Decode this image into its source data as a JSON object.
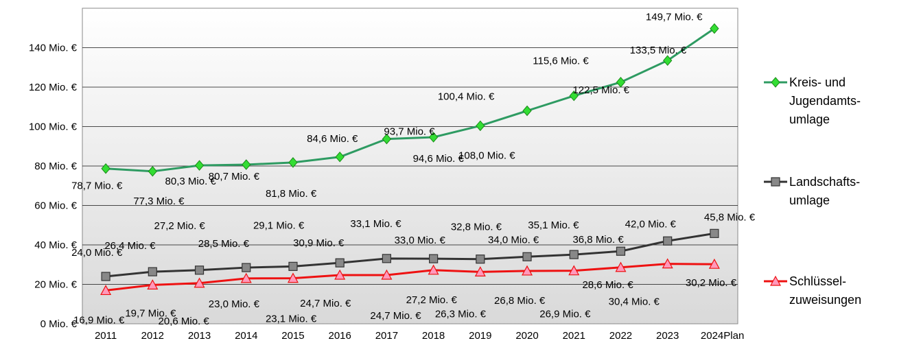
{
  "chart_data": {
    "type": "line",
    "title": "",
    "xlabel": "",
    "ylabel": "",
    "ylim": [
      0,
      160
    ],
    "y_unit_suffix": " Mio. €",
    "y_ticks": [
      "0 Mio. €",
      "20 Mio. €",
      "40 Mio. €",
      "60 Mio. €",
      "80 Mio. €",
      "100 Mio. €",
      "120 Mio. €",
      "140 Mio. €"
    ],
    "grid": true,
    "legend_position": "right",
    "categories": [
      "2011",
      "2012",
      "2013",
      "2014",
      "2015",
      "2016",
      "2017",
      "2018",
      "2019",
      "2020",
      "2021",
      "2022",
      "2023",
      "2024Plan"
    ],
    "series": [
      {
        "name": "Kreis- und Jugendamts-umlage",
        "legend_lines": [
          "Kreis- und",
          "Jugendamts-",
          "umlage"
        ],
        "color": "#2e9b62",
        "marker": "diamond",
        "marker_color": "#33dd33",
        "values": [
          78.7,
          77.3,
          80.3,
          80.7,
          81.8,
          84.6,
          93.7,
          94.6,
          100.4,
          108.0,
          115.6,
          122.5,
          133.5,
          149.7
        ],
        "labels": [
          "78,7 Mio. €",
          "77,3 Mio. €",
          "80,3 Mio. €",
          "80,7 Mio. €",
          "81,8 Mio. €",
          "84,6 Mio. €",
          "93,7 Mio. €",
          "94,6 Mio. €",
          "100,4 Mio. €",
          "108,0 Mio. €",
          "115,6 Mio. €",
          "122,5 Mio. €",
          "133,5 Mio. €",
          "149,7 Mio. €"
        ]
      },
      {
        "name": "Landschafts-umlage",
        "legend_lines": [
          "Landschafts-",
          "umlage"
        ],
        "color": "#333333",
        "marker": "square",
        "marker_color": "#888888",
        "values": [
          24.0,
          26.4,
          27.2,
          28.5,
          29.1,
          30.9,
          33.1,
          33.0,
          32.8,
          34.0,
          35.1,
          36.8,
          42.0,
          45.8
        ],
        "labels": [
          "24,0 Mio. €",
          "26,4 Mio. €",
          "27,2 Mio. €",
          "28,5 Mio. €",
          "29,1 Mio. €",
          "30,9 Mio. €",
          "33,1 Mio. €",
          "33,0 Mio. €",
          "32,8 Mio. €",
          "34,0 Mio. €",
          "35,1 Mio. €",
          "36,8 Mio. €",
          "42,0 Mio. €",
          "45,8 Mio. €"
        ]
      },
      {
        "name": "Schlüssel-zuweisungen",
        "legend_lines": [
          "Schlüssel-",
          "zuweisungen"
        ],
        "color": "#ee1111",
        "marker": "triangle",
        "marker_color": "#ff99bb",
        "values": [
          16.9,
          19.7,
          20.6,
          23.0,
          23.1,
          24.7,
          24.7,
          27.2,
          26.3,
          26.8,
          26.9,
          28.6,
          30.4,
          30.2
        ],
        "labels": [
          "16,9 Mio. €",
          "19,7 Mio. €",
          "20,6 Mio. €",
          "23,0 Mio. €",
          "23,1 Mio. €",
          "24,7 Mio. €",
          "24,7 Mio. €",
          "27,2 Mio. €",
          "26,3 Mio. €",
          "26,8 Mio. €",
          "26,9 Mio. €",
          "28,6 Mio. €",
          "30,4 Mio. €",
          "30,2 Mio. €"
        ]
      }
    ]
  }
}
